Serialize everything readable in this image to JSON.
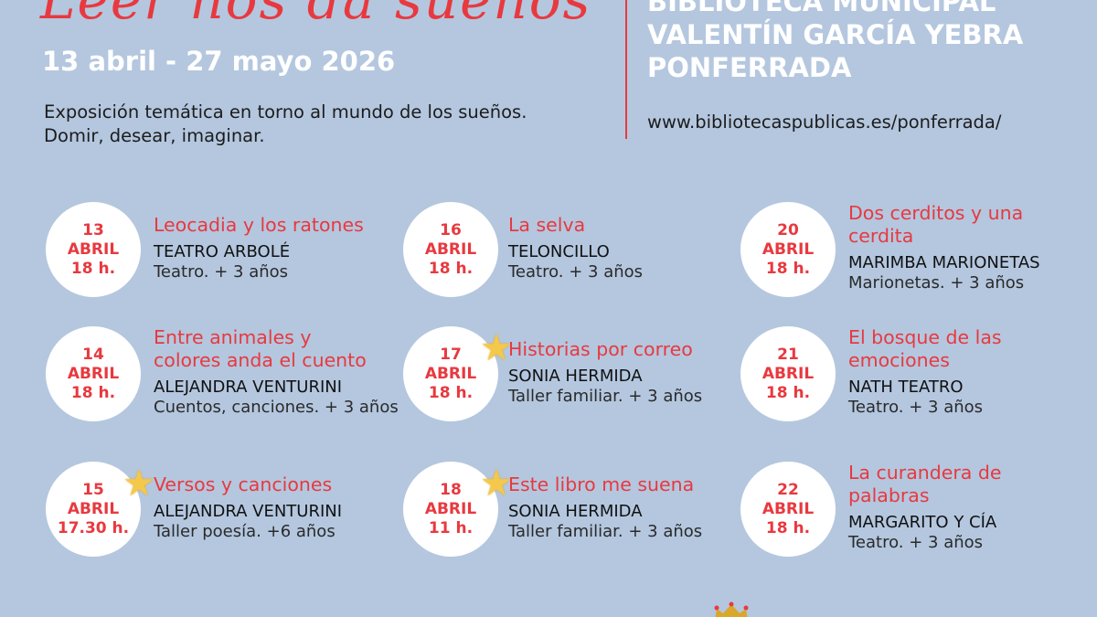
{
  "header": {
    "title": "Leer nos da sueños",
    "dates": "13 abril - 27 mayo 2026",
    "intro": "Exposición temática en torno al mundo de los sueños. Domir, desear, imaginar."
  },
  "library": {
    "lines": [
      "BIBLIOTECA MUNICIPAL",
      "VALENTÍN GARCÍA YEBRA",
      "PONFERRADA"
    ],
    "url": "www.bibliotecaspublicas.es/ponferrada/"
  },
  "events": [
    {
      "day": "13",
      "month": "ABRIL",
      "time": "18 h.",
      "title": [
        "Leocadia y los ratones"
      ],
      "performer": "TEATRO ARBOLÉ",
      "description": "Teatro. + 3 años",
      "starred": false
    },
    {
      "day": "16",
      "month": "ABRIL",
      "time": "18 h.",
      "title": [
        "La selva"
      ],
      "performer": "TELONCILLO",
      "description": "Teatro. + 3 años",
      "starred": false
    },
    {
      "day": "20",
      "month": "ABRIL",
      "time": "18 h.",
      "title": [
        "Dos cerditos y una",
        "cerdita"
      ],
      "performer": "MARIMBA MARIONETAS",
      "description": "Marionetas. + 3 años",
      "starred": false
    },
    {
      "day": "14",
      "month": "ABRIL",
      "time": "18 h.",
      "title": [
        "Entre animales y",
        "colores anda el cuento"
      ],
      "performer": "ALEJANDRA VENTURINI",
      "description": "Cuentos, canciones. + 3 años",
      "starred": false
    },
    {
      "day": "17",
      "month": "ABRIL",
      "time": "18 h.",
      "title": [
        "Historias por correo"
      ],
      "performer": "SONIA HERMIDA",
      "description": "Taller familiar. + 3 años",
      "starred": true
    },
    {
      "day": "21",
      "month": "ABRIL",
      "time": "18 h.",
      "title": [
        "El bosque de las",
        "emociones"
      ],
      "performer": "NATH TEATRO",
      "description": "Teatro. + 3 años",
      "starred": false
    },
    {
      "day": "15",
      "month": "ABRIL",
      "time": "17.30 h.",
      "title": [
        "Versos y canciones"
      ],
      "performer": "ALEJANDRA VENTURINI",
      "description": "Taller poesía. +6 años",
      "starred": true
    },
    {
      "day": "18",
      "month": "ABRIL",
      "time": "11 h.",
      "title": [
        "Este libro me suena"
      ],
      "performer": "SONIA HERMIDA",
      "description": "Taller familiar. + 3 años",
      "starred": true
    },
    {
      "day": "22",
      "month": "ABRIL",
      "time": "18 h.",
      "title": [
        "La curandera de",
        "palabras"
      ],
      "performer": "MARGARITO Y CÍA",
      "description": "Teatro. + 3 años",
      "starred": false
    }
  ],
  "colors": {
    "background": "#b4c7df",
    "accent": "#e8393f",
    "star": "#f4c84a"
  },
  "icons": {
    "star": "star-icon",
    "crest": "crown-icon"
  }
}
